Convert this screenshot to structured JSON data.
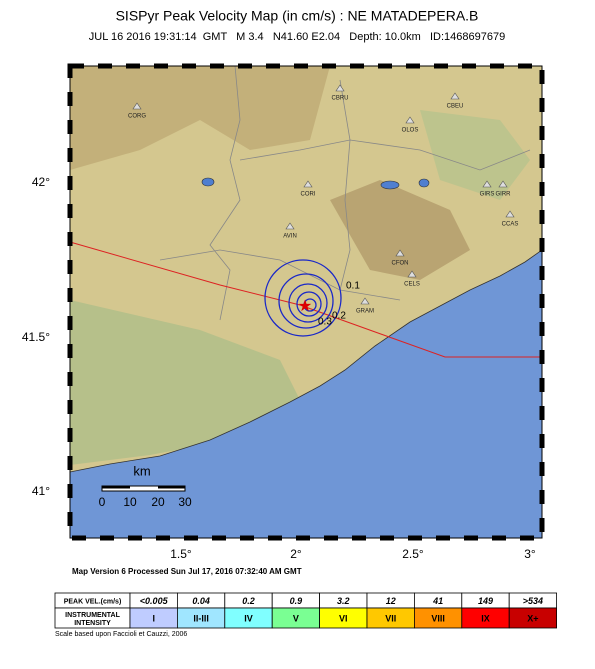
{
  "header": {
    "title": "SISPyr Peak Velocity Map (in cm/s) : NE MATADEPERA.B",
    "subtitle": "JUL 16 2016 19:31:14  GMT   M 3.4   N41.60 E2.04   Depth: 10.0km   ID:1468697679"
  },
  "map": {
    "lat_labels": [
      "42°",
      "41.5°",
      "41°"
    ],
    "lon_labels": [
      "1.5°",
      "2°",
      "2.5°",
      "3°"
    ],
    "stations": [
      "CORG",
      "CBRU",
      "CBEU",
      "OLOS",
      "GIRS",
      "GIRR",
      "CORI",
      "AVIN",
      "CCAS",
      "CFON",
      "CELS",
      "GRAM"
    ],
    "contour_labels": [
      "0.1",
      "0.3",
      "0.2"
    ],
    "scale": {
      "unit": "km",
      "ticks": [
        "0",
        "10",
        "20",
        "30"
      ]
    }
  },
  "footer": {
    "version": "Map Version 6 Processed Sun Jul 17, 2016 07:32:40 AM GMT",
    "legend": {
      "rows": [
        [
          "PEAK VEL.(cm/s)",
          "<0.005",
          "0.04",
          "0.2",
          "0.9",
          "3.2",
          "12",
          "41",
          "149",
          ">534"
        ],
        [
          "INSTRUMENTAL INTENSITY",
          "I",
          "II-III",
          "IV",
          "V",
          "VI",
          "VII",
          "VIII",
          "IX",
          "X+"
        ]
      ]
    },
    "credit": "Scale based upon Faccioli et Cauzzi, 2006"
  }
}
